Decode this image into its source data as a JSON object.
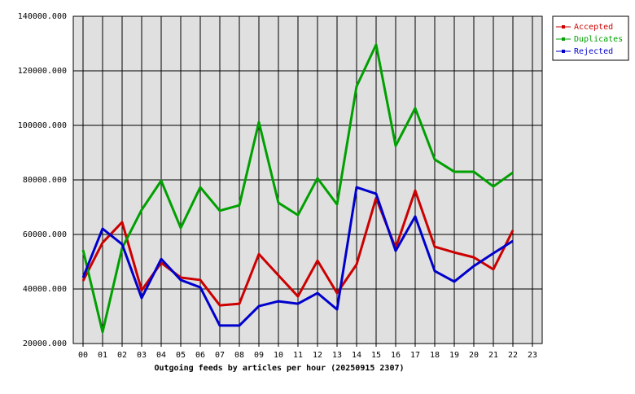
{
  "chart_data": {
    "type": "line",
    "title": "Outgoing feeds by articles per hour (20250915 2307)",
    "categories": [
      "00",
      "01",
      "02",
      "03",
      "04",
      "05",
      "06",
      "07",
      "08",
      "09",
      "10",
      "11",
      "12",
      "13",
      "14",
      "15",
      "16",
      "17",
      "18",
      "19",
      "20",
      "21",
      "22",
      "23"
    ],
    "series": [
      {
        "name": "Accepted",
        "color": "#cc0000",
        "values": [
          43000,
          57000,
          64500,
          39500,
          49600,
          44200,
          43300,
          34000,
          34600,
          52800,
          45000,
          37300,
          50400,
          38500,
          49000,
          73400,
          55000,
          76100,
          55500,
          53400,
          51600,
          47200,
          61500,
          null
        ]
      },
      {
        "name": "Duplicates",
        "color": "#00a000",
        "values": [
          54300,
          24200,
          55000,
          69000,
          79700,
          62400,
          77300,
          68700,
          70700,
          101200,
          71600,
          67100,
          80600,
          71000,
          114300,
          129600,
          92500,
          106300,
          87500,
          83000,
          83000,
          77600,
          82700,
          null
        ]
      },
      {
        "name": "Rejected",
        "color": "#0000cc",
        "values": [
          44200,
          62100,
          56400,
          36700,
          51000,
          43300,
          40600,
          26600,
          26600,
          33700,
          35500,
          34600,
          38500,
          32500,
          77300,
          74900,
          54000,
          66600,
          46600,
          42700,
          48400,
          53100,
          57600,
          null
        ]
      }
    ],
    "ylim": [
      20000,
      140000
    ],
    "yticks": [
      {
        "value": 20000,
        "label": "20000.000"
      },
      {
        "value": 40000,
        "label": "40000.000"
      },
      {
        "value": 60000,
        "label": "60000.000"
      },
      {
        "value": 80000,
        "label": "80000.000"
      },
      {
        "value": 100000,
        "label": "100000.000"
      },
      {
        "value": 120000,
        "label": "120000.000"
      },
      {
        "value": 140000,
        "label": "140000.000"
      }
    ],
    "grid": true,
    "legend": "top-right"
  }
}
